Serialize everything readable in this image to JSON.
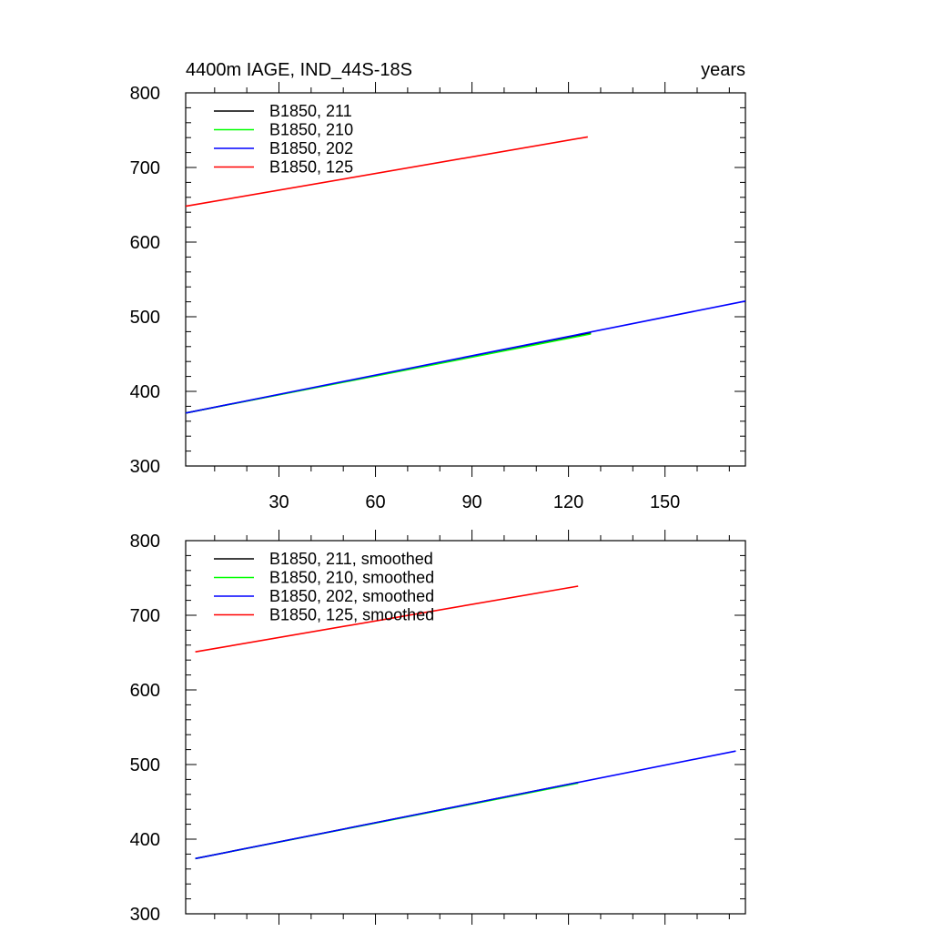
{
  "chart_data": [
    {
      "type": "line",
      "title": "4400m IAGE, IND_44S-18S",
      "title_right": "years",
      "xlabel": "",
      "ylabel": "",
      "xlim": [
        1,
        175
      ],
      "ylim": [
        300,
        800
      ],
      "x_major_ticks": [
        30,
        60,
        90,
        120,
        150
      ],
      "y_major_ticks": [
        300,
        400,
        500,
        600,
        700,
        800
      ],
      "x_tick_labels_shown": true,
      "grid": false,
      "legend_position": "top-left",
      "series": [
        {
          "name": "B1850, 211",
          "color": "#000000",
          "x": [
            1,
            127
          ],
          "y": [
            371,
            478
          ]
        },
        {
          "name": "B1850, 210",
          "color": "#00ff00",
          "x": [
            1,
            127
          ],
          "y": [
            371,
            477
          ]
        },
        {
          "name": "B1850, 202",
          "color": "#0000ff",
          "x": [
            1,
            175
          ],
          "y": [
            371,
            521
          ]
        },
        {
          "name": "B1850, 125",
          "color": "#ff0000",
          "x": [
            1,
            126
          ],
          "y": [
            648,
            741
          ]
        }
      ]
    },
    {
      "type": "line",
      "title": "",
      "xlabel": "",
      "ylabel": "",
      "xlim": [
        1,
        175
      ],
      "ylim": [
        300,
        800
      ],
      "x_major_ticks": [
        30,
        60,
        90,
        120,
        150
      ],
      "y_major_ticks": [
        300,
        400,
        500,
        600,
        700,
        800
      ],
      "x_tick_labels_shown": false,
      "grid": false,
      "legend_position": "top-left",
      "series": [
        {
          "name": "B1850, 211, smoothed",
          "color": "#000000",
          "x": [
            4,
            123
          ],
          "y": [
            374,
            476
          ]
        },
        {
          "name": "B1850, 210, smoothed",
          "color": "#00ff00",
          "x": [
            4,
            123
          ],
          "y": [
            374,
            475
          ]
        },
        {
          "name": "B1850, 202, smoothed",
          "color": "#0000ff",
          "x": [
            4,
            172
          ],
          "y": [
            374,
            518
          ]
        },
        {
          "name": "B1850, 125, smoothed",
          "color": "#ff0000",
          "x": [
            4,
            123
          ],
          "y": [
            651,
            739
          ]
        }
      ]
    }
  ]
}
